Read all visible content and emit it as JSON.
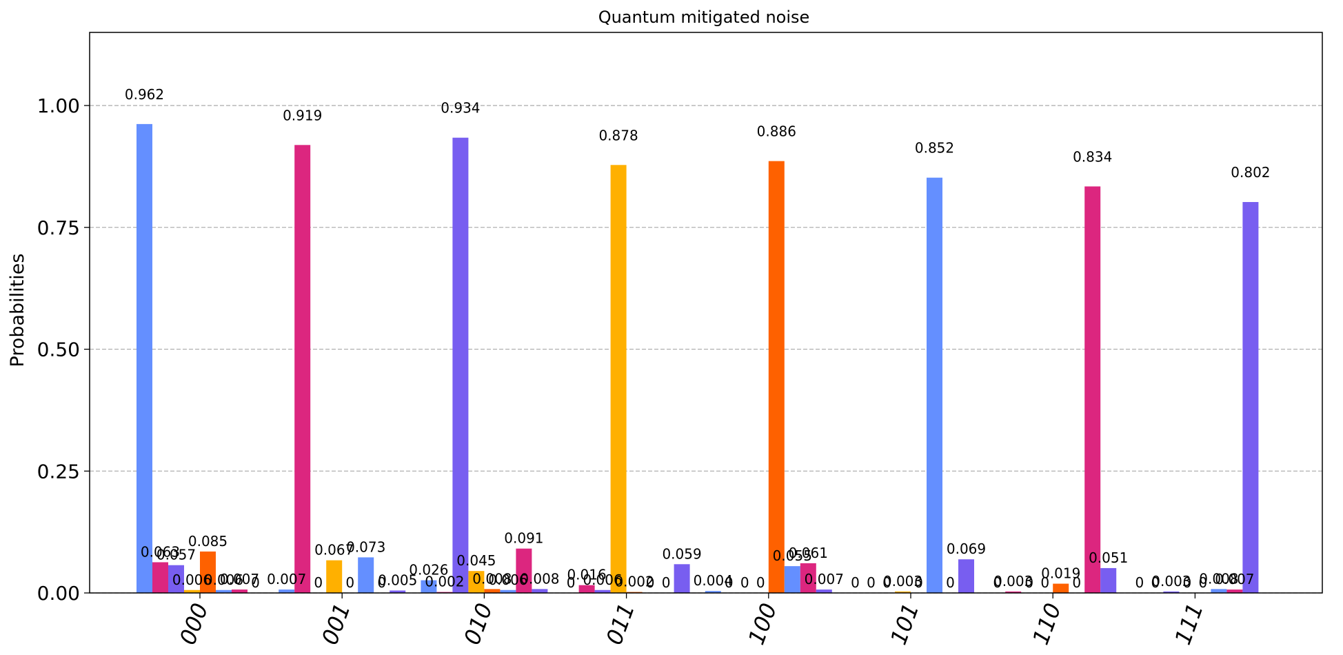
{
  "chart_data": {
    "type": "bar",
    "title": "Quantum mitigated noise",
    "xlabel": "",
    "ylabel": "Probabilities",
    "ylim": [
      0,
      1.15
    ],
    "yticks": [
      0.0,
      0.25,
      0.5,
      0.75,
      1.0
    ],
    "ytick_labels": [
      "0.00",
      "0.25",
      "0.50",
      "0.75",
      "1.00"
    ],
    "grid": "horizontal dashed",
    "legend": "none",
    "categories": [
      "000",
      "001",
      "010",
      "011",
      "100",
      "101",
      "110",
      "111"
    ],
    "series": [
      {
        "color": "#648fff",
        "values": [
          0.962,
          0.007,
          0.026,
          0.0,
          0.004,
          0.0,
          0.0,
          0.0
        ],
        "labels": [
          "0.962",
          "0.007",
          "0.026",
          "0",
          "0.004",
          "0",
          "0",
          "0"
        ]
      },
      {
        "color": "#dc267f",
        "values": [
          0.063,
          0.919,
          0.002,
          0.016,
          0.0,
          0.0,
          0.003,
          0.0
        ],
        "labels": [
          "0.063",
          "0.919",
          "0.002",
          "0.016",
          "0",
          "0",
          "0.003",
          "0"
        ]
      },
      {
        "color": "#785ef0",
        "values": [
          0.057,
          0.0,
          0.934,
          0.006,
          0.0,
          0.0,
          0.0,
          0.003
        ],
        "labels": [
          "0.057",
          "0",
          "0.934",
          "0.006",
          "0",
          "0",
          "0",
          "0.003"
        ]
      },
      {
        "color": "#ffb000",
        "values": [
          0.006,
          0.067,
          0.045,
          0.878,
          0.0,
          0.003,
          0.0,
          0.0
        ],
        "labels": [
          "0.006",
          "0.067",
          "0.045",
          "0.878",
          "0",
          "0.003",
          "0",
          "0"
        ]
      },
      {
        "color": "#fe6100",
        "values": [
          0.085,
          0.0,
          0.008,
          0.002,
          0.886,
          0.0,
          0.019,
          0.0
        ],
        "labels": [
          "0.085",
          "0",
          "0.008",
          "0.002",
          "0.886",
          "0",
          "0.019",
          "0"
        ]
      },
      {
        "color": "#648fff",
        "values": [
          0.006,
          0.073,
          0.006,
          0.0,
          0.055,
          0.852,
          0.0,
          0.008
        ],
        "labels": [
          "0.006",
          "0.073",
          "0.006",
          "0",
          "0.055",
          "0.852",
          "0",
          "0.008"
        ]
      },
      {
        "color": "#dc267f",
        "values": [
          0.007,
          0.0,
          0.091,
          0.0,
          0.061,
          0.0,
          0.834,
          0.007
        ],
        "labels": [
          "0.007",
          "0",
          "0.091",
          "0",
          "0.061",
          "0",
          "0.834",
          "0.007"
        ]
      },
      {
        "color": "#785ef0",
        "values": [
          0.0,
          0.005,
          0.008,
          0.059,
          0.007,
          0.069,
          0.051,
          0.802
        ],
        "labels": [
          "0",
          "0.005",
          "0.008",
          "0.059",
          "0.007",
          "0.069",
          "0.051",
          "0.802"
        ]
      }
    ]
  }
}
